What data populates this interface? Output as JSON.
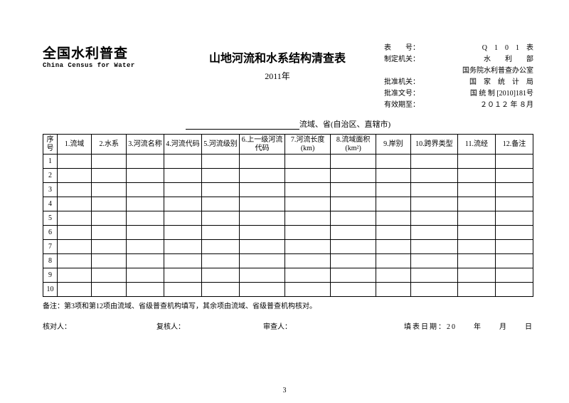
{
  "brand": {
    "cn": "全国水利普查",
    "en": "China Census for Water"
  },
  "title": "山地河流和水系结构清查表",
  "year": "2011年",
  "meta": {
    "l1_label": "表　　号：",
    "l1_value": "Q　1　0　1　表",
    "l2_label": "制定机关：",
    "l2_value": "水　　利　　部",
    "l2b": "国务院水利普查办公室",
    "l3_label": "批准机关：",
    "l3_value": "国　家　统　计　局",
    "l4_label": "批准文号：",
    "l4_value": "国 统 制 [2010]181号",
    "l5_label": "有效期至：",
    "l5_value": "２０１２ 年 ８月"
  },
  "region_suffix": "流域、省(自治区、直辖市)",
  "columns": {
    "idx": "序号",
    "c1": "1.流域",
    "c2": "2.水系",
    "c3": "3.河流名称",
    "c4": "4.河流代码",
    "c5": "5.河流级别",
    "c6": "6.上一级河流代码",
    "c7": "7.河流长度(km)",
    "c8": "8.流域面积(km²)",
    "c9": "9.岸别",
    "c10": "10.跨界类型",
    "c11": "11.流经",
    "c12": "12.备注"
  },
  "rows": [
    "1",
    "2",
    "3",
    "4",
    "5",
    "6",
    "7",
    "8",
    "9",
    "10"
  ],
  "note": "备注：第3项和第12项由流域、省级普查机构填写，其余项由流域、省级普查机构核对。",
  "footer": {
    "checker": "核对人：",
    "reviewer": "复核人：",
    "auditor": "审查人：",
    "date": "填表日期：20　　年　　月　　日"
  },
  "page_num": "3"
}
